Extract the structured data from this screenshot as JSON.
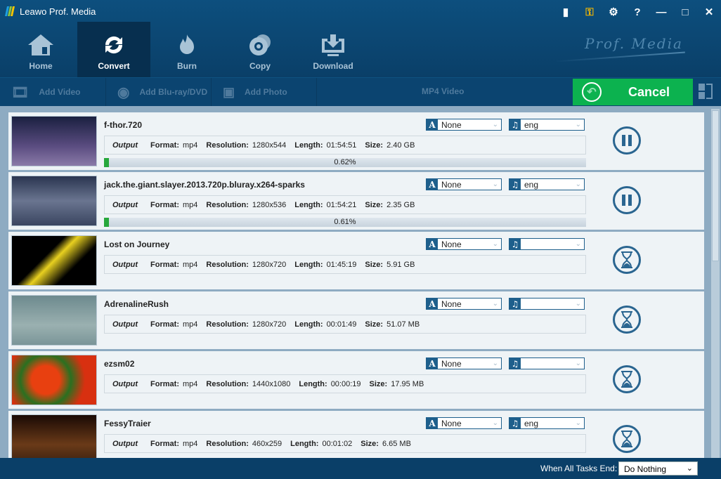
{
  "app": {
    "title": "Leawo Prof. Media",
    "brand": "Prof. Media"
  },
  "nav": [
    {
      "label": "Home",
      "icon": "home-icon"
    },
    {
      "label": "Convert",
      "icon": "convert-icon",
      "active": true
    },
    {
      "label": "Burn",
      "icon": "burn-icon"
    },
    {
      "label": "Copy",
      "icon": "copy-icon"
    },
    {
      "label": "Download",
      "icon": "download-icon"
    }
  ],
  "toolbar": {
    "add_video": "Add Video",
    "add_bluray": "Add Blu-ray/DVD",
    "add_photo": "Add Photo",
    "format": "MP4 Video",
    "cancel": "Cancel"
  },
  "labels": {
    "output": "Output",
    "format": "Format:",
    "resolution": "Resolution:",
    "length": "Length:",
    "size": "Size:"
  },
  "tasks": [
    {
      "name": "f-thor.720",
      "subtitle": "None",
      "audio": "eng",
      "format": "mp4",
      "resolution": "1280x544",
      "length": "01:54:51",
      "size": "2.40 GB",
      "progress": "0.62%",
      "progress_value": 0.62,
      "state": "converting"
    },
    {
      "name": "jack.the.giant.slayer.2013.720p.bluray.x264-sparks",
      "subtitle": "None",
      "audio": "eng",
      "format": "mp4",
      "resolution": "1280x536",
      "length": "01:54:21",
      "size": "2.35 GB",
      "progress": "0.61%",
      "progress_value": 0.61,
      "state": "converting"
    },
    {
      "name": "Lost on Journey",
      "subtitle": "None",
      "audio": "",
      "format": "mp4",
      "resolution": "1280x720",
      "length": "01:45:19",
      "size": "5.91 GB",
      "state": "waiting"
    },
    {
      "name": "AdrenalineRush",
      "subtitle": "None",
      "audio": "",
      "format": "mp4",
      "resolution": "1280x720",
      "length": "00:01:49",
      "size": "51.07 MB",
      "state": "waiting"
    },
    {
      "name": "ezsm02",
      "subtitle": "None",
      "audio": "",
      "format": "mp4",
      "resolution": "1440x1080",
      "length": "00:00:19",
      "size": "17.95 MB",
      "state": "waiting"
    },
    {
      "name": "FessyTraier",
      "subtitle": "None",
      "audio": "eng",
      "format": "mp4",
      "resolution": "460x259",
      "length": "00:01:02",
      "size": "6.65 MB",
      "state": "waiting"
    }
  ],
  "footer": {
    "label": "When All Tasks End:",
    "option": "Do Nothing"
  },
  "colors": {
    "accent": "#0cb24f",
    "header": "#0a3f68",
    "progress": "#27a83c"
  }
}
